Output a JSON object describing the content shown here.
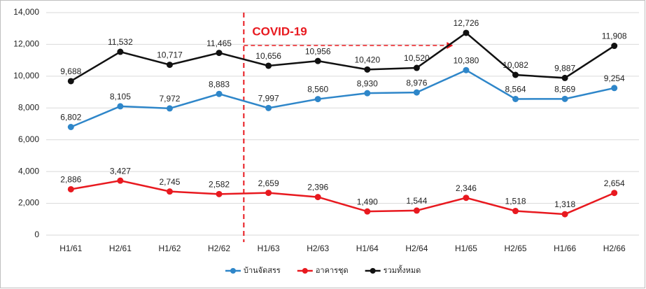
{
  "chart_data": {
    "type": "line",
    "categories": [
      "H1/61",
      "H2/61",
      "H1/62",
      "H2/62",
      "H1/63",
      "H2/63",
      "H1/64",
      "H2/64",
      "H1/65",
      "H2/65",
      "H1/66",
      "H2/66"
    ],
    "series": [
      {
        "name": "บ้านจัดสรร",
        "color": "#2e86c9",
        "values": [
          6802,
          8105,
          7972,
          8883,
          7997,
          8560,
          8930,
          8976,
          10380,
          8564,
          8569,
          9254
        ],
        "value_labels": [
          "6,802",
          "8,105",
          "7,972",
          "8,883",
          "7,997",
          "8,560",
          "8,930",
          "8,976",
          "10,380",
          "8,564",
          "8,569",
          "9,254"
        ]
      },
      {
        "name": "อาคารชุด",
        "color": "#e8191f",
        "values": [
          2886,
          3427,
          2745,
          2582,
          2659,
          2396,
          1490,
          1544,
          2346,
          1518,
          1318,
          2654
        ],
        "value_labels": [
          "2,886",
          "3,427",
          "2,745",
          "2,582",
          "2,659",
          "2,396",
          "1,490",
          "1,544",
          "2,346",
          "1,518",
          "1,318",
          "2,654"
        ]
      },
      {
        "name": "รวมทั้งหมด",
        "color": "#111111",
        "values": [
          9688,
          11532,
          10717,
          11465,
          10656,
          10956,
          10420,
          10520,
          12726,
          10082,
          9887,
          11908
        ],
        "value_labels": [
          "9,688",
          "11,532",
          "10,717",
          "11,465",
          "10,656",
          "10,956",
          "10,420",
          "10,520",
          "12,726",
          "10,082",
          "9,887",
          "11,908"
        ]
      }
    ],
    "ylim": [
      0,
      14000
    ],
    "yticks": [
      0,
      {
        "value": 2000,
        "label": "2,000"
      },
      {
        "value": 4000,
        "label": "4,000"
      },
      {
        "value": 6000,
        "label": "6,000"
      },
      {
        "value": 8000,
        "label": "8,000"
      },
      {
        "value": 10000,
        "label": "10,000"
      },
      {
        "value": 12000,
        "label": "12,000"
      },
      {
        "value": 14000,
        "label": "14,000"
      }
    ],
    "grid": true,
    "legend": "bottom",
    "annotation": "COVID-19"
  }
}
